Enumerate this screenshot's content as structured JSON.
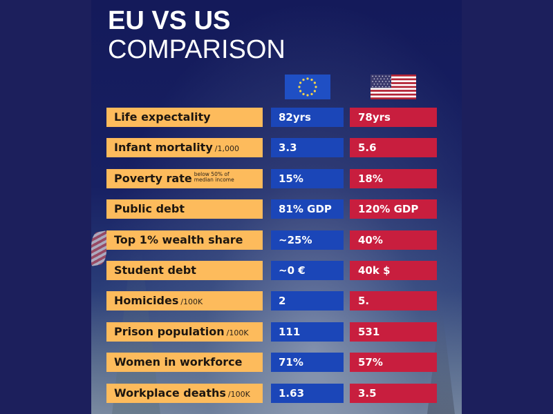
{
  "title": {
    "line1": "EU VS US",
    "line2": "COMPARISON"
  },
  "columns": {
    "eu": {
      "name": "EU",
      "icon": "eu-flag-icon",
      "color": "#1b46b8"
    },
    "us": {
      "name": "US",
      "icon": "us-flag-icon",
      "color": "#c81e3e"
    }
  },
  "label_color": "#fdbb5c",
  "rows": [
    {
      "label": "Life expectality",
      "unit": "",
      "note": "",
      "eu": "82yrs",
      "us": "78yrs"
    },
    {
      "label": "Infant mortality",
      "unit": "/1,000",
      "note": "",
      "eu": "3.3",
      "us": "5.6"
    },
    {
      "label": "Poverty rate",
      "unit": "",
      "note": "below 50% of median income",
      "eu": "15%",
      "us": "18%"
    },
    {
      "label": "Public debt",
      "unit": "",
      "note": "",
      "eu": "81% GDP",
      "us": "120% GDP"
    },
    {
      "label": "Top 1% wealth share",
      "unit": "",
      "note": "",
      "eu": "~25%",
      "us": "40%"
    },
    {
      "label": "Student debt",
      "unit": "",
      "note": "",
      "eu": "~0 €",
      "us": "40k $"
    },
    {
      "label": "Homicides",
      "unit": "/100K",
      "note": "",
      "eu": "2",
      "us": "5."
    },
    {
      "label": "Prison population",
      "unit": "/100K",
      "note": "",
      "eu": "111",
      "us": "531"
    },
    {
      "label": "Women in workforce",
      "unit": "",
      "note": "",
      "eu": "71%",
      "us": "57%"
    },
    {
      "label": "Workplace deaths",
      "unit": "/100K",
      "note": "",
      "eu": "1.63",
      "us": "3.5"
    }
  ]
}
